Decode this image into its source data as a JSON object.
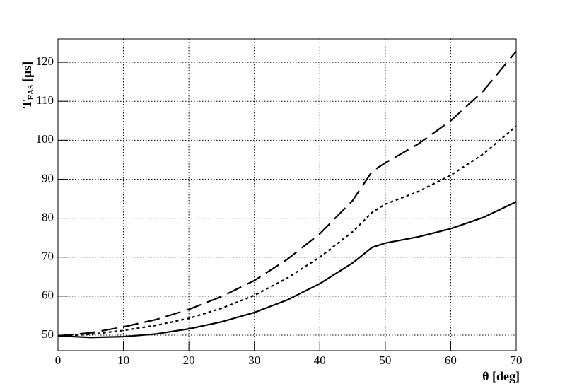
{
  "chart_data": {
    "type": "line",
    "ylabel": "T",
    "ylabel_sub": "EAS",
    "ylabel_unit": "[μs]",
    "xlabel": "θ [deg]",
    "x": [
      0,
      5,
      10,
      15,
      20,
      25,
      30,
      35,
      40,
      45,
      48,
      50,
      55,
      60,
      65,
      70
    ],
    "series": [
      {
        "color": "#000000",
        "dash": "solid",
        "values": [
          49.8,
          49.4,
          49.6,
          50.3,
          51.6,
          53.4,
          55.8,
          59.0,
          63.2,
          68.5,
          72.5,
          73.6,
          75.2,
          77.3,
          80.2,
          84.2
        ]
      },
      {
        "color": "#000000",
        "dash": "dotted",
        "values": [
          49.8,
          50.2,
          51.2,
          52.5,
          54.3,
          56.9,
          60.2,
          64.6,
          70.0,
          76.5,
          81.5,
          83.6,
          86.8,
          91.0,
          96.5,
          103.6
        ]
      },
      {
        "color": "#000000",
        "dash": "dashed",
        "values": [
          49.8,
          50.6,
          52.1,
          54.0,
          56.6,
          59.9,
          64.0,
          69.4,
          76.0,
          84.5,
          92.0,
          94.2,
          99.0,
          105.0,
          112.7,
          122.8
        ]
      }
    ],
    "xlim": [
      0,
      70
    ],
    "xticks": [
      0,
      10,
      20,
      30,
      40,
      50,
      60,
      70
    ],
    "ylim": [
      46,
      126
    ],
    "yticks": [
      50,
      60,
      70,
      80,
      90,
      100,
      110,
      120
    ],
    "grid": true
  }
}
